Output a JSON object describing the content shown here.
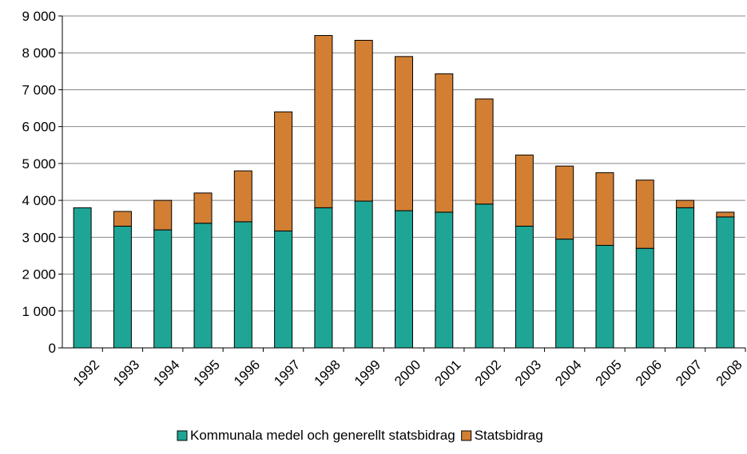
{
  "chart_data": {
    "type": "stacked_bar",
    "categories": [
      "1992",
      "1993",
      "1994",
      "1995",
      "1996",
      "1997",
      "1998",
      "1999",
      "2000",
      "2001",
      "2002",
      "2003",
      "2004",
      "2005",
      "2006",
      "2007",
      "2008"
    ],
    "series": [
      {
        "name": "Kommunala medel och generellt statsbidrag",
        "color": "#1fa595",
        "values": [
          3800,
          3300,
          3200,
          3380,
          3420,
          3170,
          3800,
          3980,
          3720,
          3680,
          3900,
          3300,
          2950,
          2780,
          2700,
          3800,
          3550
        ]
      },
      {
        "name": "Statsbidrag",
        "color": "#d27f33",
        "values": [
          0,
          400,
          800,
          820,
          1380,
          3230,
          4670,
          4360,
          4180,
          3750,
          2850,
          1930,
          1980,
          1970,
          1850,
          200,
          130
        ]
      }
    ],
    "ylim": [
      0,
      9000
    ],
    "yticks": [
      0,
      {
        "value": 1000,
        "label": "1 000"
      },
      {
        "value": 2000,
        "label": "2 000"
      },
      {
        "value": 3000,
        "label": "3 000"
      },
      {
        "value": 4000,
        "label": "4 000"
      },
      {
        "value": 5000,
        "label": "5 000"
      },
      {
        "value": 6000,
        "label": "6 000"
      },
      {
        "value": 7000,
        "label": "7 000"
      },
      {
        "value": 8000,
        "label": "8 000"
      },
      {
        "value": 9000,
        "label": "9 000"
      }
    ],
    "grid": true,
    "legend": "bottom"
  }
}
